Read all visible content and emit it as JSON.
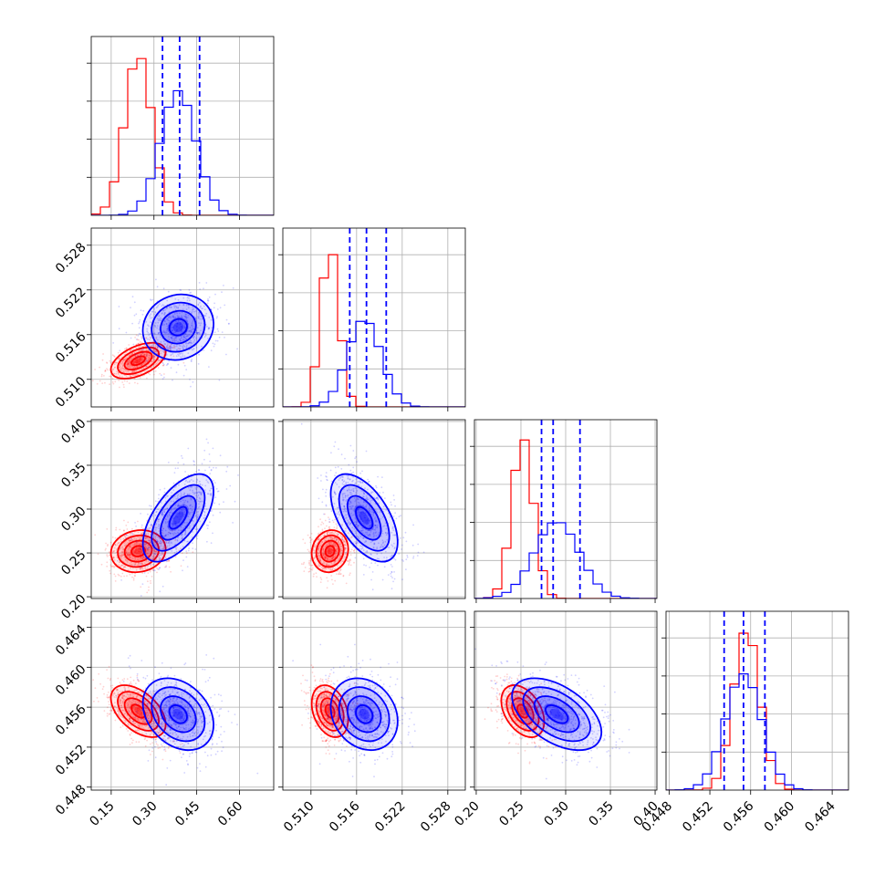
{
  "chart_data": {
    "type": "corner",
    "title": "",
    "grid": true,
    "legend": "none",
    "colors": {
      "red_series": "#ff0000",
      "blue_series": "#0000ff",
      "grid": "#b0b0b0"
    },
    "series": [
      {
        "color": "#ff0000",
        "quantiles_shown": false
      },
      {
        "color": "#0000ff",
        "quantiles_shown": true
      }
    ],
    "parameters": [
      {
        "range": [
          0.08,
          0.72
        ],
        "ticks": [
          "0.15",
          "0.30",
          "0.45",
          "0.60"
        ],
        "tick_values": [
          0.15,
          0.3,
          0.45,
          0.6
        ],
        "red": {
          "mean": 0.245,
          "sd": 0.048
        },
        "blue": {
          "mean": 0.385,
          "sd": 0.062,
          "quantiles": [
            0.33,
            0.39,
            0.46
          ]
        }
      },
      {
        "range": [
          0.5063,
          0.5303
        ],
        "ticks": [
          "0.510",
          "0.516",
          "0.522",
          "0.528"
        ],
        "tick_values": [
          0.51,
          0.516,
          0.522,
          0.528
        ],
        "red": {
          "mean": 0.5125,
          "sd": 0.0012
        },
        "blue": {
          "mean": 0.517,
          "sd": 0.0022,
          "quantiles": [
            0.5151,
            0.5173,
            0.5199
          ]
        }
      },
      {
        "range": [
          0.198,
          0.402
        ],
        "ticks": [
          "0.20",
          "0.25",
          "0.30",
          "0.35",
          "0.40"
        ],
        "tick_values": [
          0.2,
          0.25,
          0.3,
          0.35,
          0.4
        ],
        "red": {
          "mean": 0.252,
          "sd": 0.012
        },
        "blue": {
          "mean": 0.29,
          "sd": 0.025,
          "quantiles": [
            0.273,
            0.286,
            0.316
          ]
        }
      },
      {
        "range": [
          0.4477,
          0.4656
        ],
        "ticks": [
          "0.448",
          "0.452",
          "0.456",
          "0.460",
          "0.464"
        ],
        "tick_values": [
          0.448,
          0.452,
          0.456,
          0.46,
          0.464
        ],
        "red": {
          "mean": 0.4556,
          "sd": 0.0013
        },
        "blue": {
          "mean": 0.4553,
          "sd": 0.0018,
          "quantiles": [
            0.4534,
            0.4553,
            0.4574
          ]
        }
      }
    ],
    "correlations": {
      "red": {
        "1-0": 0.5,
        "2-0": 0.1,
        "2-1": 0.1,
        "3-0": -0.5,
        "3-1": -0.3,
        "3-2": -0.4
      },
      "blue": {
        "1-0": 0.1,
        "2-0": 0.6,
        "2-1": -0.55,
        "3-0": -0.3,
        "3-1": -0.2,
        "3-2": -0.5
      }
    }
  }
}
